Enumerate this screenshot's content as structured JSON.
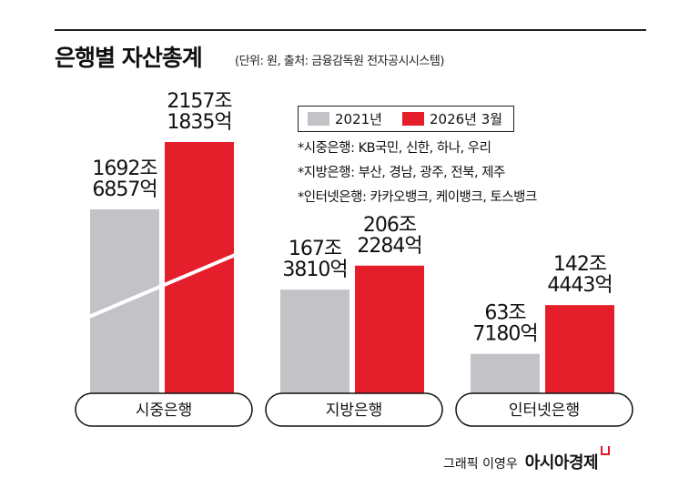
{
  "title": "은행별 자산총계",
  "subtitle": "(단위: 원, 출처: 금융감독원 전자공시시스템)",
  "colors": {
    "2021": "#c3c2c7",
    "2026": "#e51e2b"
  },
  "legend": [
    {
      "label": "2021년",
      "color": "#c3c2c7"
    },
    {
      "label": "2026년 3월",
      "color": "#e51e2b"
    }
  ],
  "notes": [
    "*시중은행: KB국민, 신한, 하나, 우리",
    "*지방은행: 부산, 경남, 광주, 전북, 제주",
    "*인터넷은행: 카카오뱅크, 케이뱅크, 토스뱅크"
  ],
  "credit": {
    "text": "그래픽 이영우",
    "logo": "아시아경제"
  },
  "chart_data": {
    "type": "bar",
    "categories": [
      "시중은행",
      "지방은행",
      "인터넷은행"
    ],
    "series": [
      {
        "name": "2021년",
        "values": [
          1692.6857,
          167.381,
          63.718
        ],
        "labels": [
          [
            "1692조",
            "6857억"
          ],
          [
            "167조",
            "3810억"
          ],
          [
            "63조",
            "7180억"
          ]
        ]
      },
      {
        "name": "2026년 3월",
        "values": [
          2157.1835,
          206.2284,
          142.4443
        ],
        "labels": [
          [
            "2157조",
            "1835억"
          ],
          [
            "206조",
            "2284억"
          ],
          [
            "142조",
            "4443억"
          ]
        ]
      }
    ],
    "unit": "조원",
    "axis_break_first_category": true
  }
}
